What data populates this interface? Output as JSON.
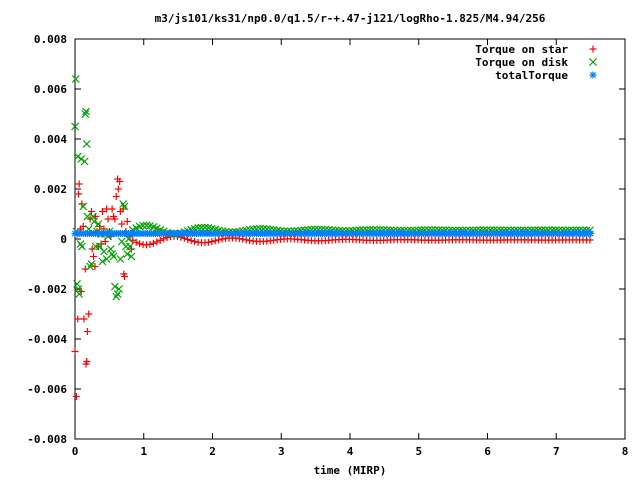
{
  "chart_data": {
    "type": "scatter",
    "title": "m3/js101/ks31/np0.0/q1.5/r-+.47-j121/logRho-1.825/M4.94/256",
    "xlabel": "time (MIRP)",
    "ylabel": "",
    "xlim": [
      0,
      8
    ],
    "ylim": [
      -0.008,
      0.008
    ],
    "xticks": [
      "0",
      "1",
      "2",
      "3",
      "4",
      "5",
      "6",
      "7",
      "8"
    ],
    "yticks": [
      "-0.008",
      "-0.006",
      "-0.004",
      "-0.002",
      "0",
      "0.002",
      "0.004",
      "0.006",
      "0.008"
    ],
    "grid": false,
    "legend_position": "top-right",
    "series": [
      {
        "name": "Torque on star",
        "color": "#ff0000",
        "marker": "plus",
        "points": [
          [
            0.0,
            -0.0045
          ],
          [
            0.02,
            -0.0063
          ],
          [
            0.03,
            0.0002
          ],
          [
            0.04,
            -0.0032
          ],
          [
            0.05,
            0.0018
          ],
          [
            0.06,
            0.0022
          ],
          [
            0.08,
            0.0004
          ],
          [
            0.09,
            -0.0021
          ],
          [
            0.1,
            0.0014
          ],
          [
            0.12,
            0.0005
          ],
          [
            0.13,
            -0.0032
          ],
          [
            0.15,
            -0.0012
          ],
          [
            0.16,
            -0.005
          ],
          [
            0.17,
            -0.0049
          ],
          [
            0.18,
            -0.0037
          ],
          [
            0.2,
            -0.003
          ],
          [
            0.22,
            0.0008
          ],
          [
            0.24,
            0.0011
          ],
          [
            0.25,
            -0.0004
          ],
          [
            0.27,
            -0.0007
          ],
          [
            0.29,
            -0.0011
          ],
          [
            0.3,
            0.0009
          ],
          [
            0.32,
            0.0003
          ],
          [
            0.34,
            -0.0003
          ],
          [
            0.36,
            0.0005
          ],
          [
            0.38,
            -0.0002
          ],
          [
            0.4,
            0.0011
          ],
          [
            0.42,
            0.0004
          ],
          [
            0.44,
            -0.0001
          ],
          [
            0.46,
            0.0012
          ],
          [
            0.48,
            0.0008
          ],
          [
            0.5,
            0.0003
          ],
          [
            0.52,
            0.0001
          ],
          [
            0.54,
            0.0012
          ],
          [
            0.56,
            0.0009
          ],
          [
            0.58,
            0.0008
          ],
          [
            0.6,
            0.0017
          ],
          [
            0.62,
            0.0024
          ],
          [
            0.63,
            0.002
          ],
          [
            0.65,
            0.0023
          ],
          [
            0.66,
            0.0011
          ],
          [
            0.68,
            0.0006
          ],
          [
            0.7,
            0.0012
          ],
          [
            0.71,
            -0.0014
          ],
          [
            0.72,
            -0.0015
          ],
          [
            0.74,
            0.0003
          ],
          [
            0.76,
            0.0007
          ],
          [
            0.78,
            0.0002
          ],
          [
            0.8,
            0.0001
          ],
          [
            0.82,
            -0.0004
          ]
        ],
        "steady": {
          "x_from": 0.84,
          "x_to": 7.5,
          "step": 0.05,
          "base": -4e-05,
          "amp0": 0.0004,
          "decay": 0.7,
          "freq": 2.4
        }
      },
      {
        "name": "Torque on disk",
        "color": "#00a000",
        "marker": "cross",
        "points": [
          [
            0.0,
            0.0045
          ],
          [
            0.01,
            0.0064
          ],
          [
            0.02,
            0.0003
          ],
          [
            0.03,
            -0.0018
          ],
          [
            0.04,
            0.0033
          ],
          [
            0.05,
            -0.002
          ],
          [
            0.06,
            -0.0022
          ],
          [
            0.08,
            -0.0002
          ],
          [
            0.09,
            0.0032
          ],
          [
            0.1,
            -0.0003
          ],
          [
            0.12,
            0.0013
          ],
          [
            0.14,
            0.0031
          ],
          [
            0.15,
            0.005
          ],
          [
            0.16,
            0.0051
          ],
          [
            0.17,
            0.0038
          ],
          [
            0.18,
            0.0009
          ],
          [
            0.2,
            0.0004
          ],
          [
            0.22,
            -0.0011
          ],
          [
            0.24,
            -0.001
          ],
          [
            0.26,
            0.0009
          ],
          [
            0.28,
            0.0007
          ],
          [
            0.3,
            -0.0003
          ],
          [
            0.32,
            0.0003
          ],
          [
            0.34,
            0.0006
          ],
          [
            0.36,
            -0.0003
          ],
          [
            0.38,
            0.0002
          ],
          [
            0.4,
            -0.0009
          ],
          [
            0.42,
            -0.0005
          ],
          [
            0.44,
            0.0002
          ],
          [
            0.46,
            -0.0008
          ],
          [
            0.48,
            0.0001
          ],
          [
            0.5,
            0.0003
          ],
          [
            0.52,
            -0.0004
          ],
          [
            0.54,
            -0.0006
          ],
          [
            0.56,
            -0.0007
          ],
          [
            0.58,
            -0.0019
          ],
          [
            0.6,
            -0.0023
          ],
          [
            0.62,
            -0.0022
          ],
          [
            0.64,
            -0.002
          ],
          [
            0.66,
            -0.0008
          ],
          [
            0.68,
            -0.0001
          ],
          [
            0.7,
            0.0014
          ],
          [
            0.72,
            0.0013
          ],
          [
            0.74,
            -0.0003
          ],
          [
            0.76,
            -0.0006
          ],
          [
            0.78,
            0.0
          ],
          [
            0.8,
            -0.0003
          ],
          [
            0.82,
            -0.0007
          ]
        ],
        "steady": {
          "x_from": 0.84,
          "x_to": 7.5,
          "step": 0.05,
          "base": 0.00035,
          "amp0": 0.0004,
          "decay": 0.7,
          "freq": 2.4
        }
      },
      {
        "name": "totalTorque",
        "color": "#0080ff",
        "marker": "star",
        "points": [],
        "steady": {
          "x_from": 0.0,
          "x_to": 7.5,
          "step": 0.03,
          "base": 0.00022,
          "amp0": 0.0,
          "decay": 0.9,
          "freq": 2.2
        }
      }
    ]
  }
}
